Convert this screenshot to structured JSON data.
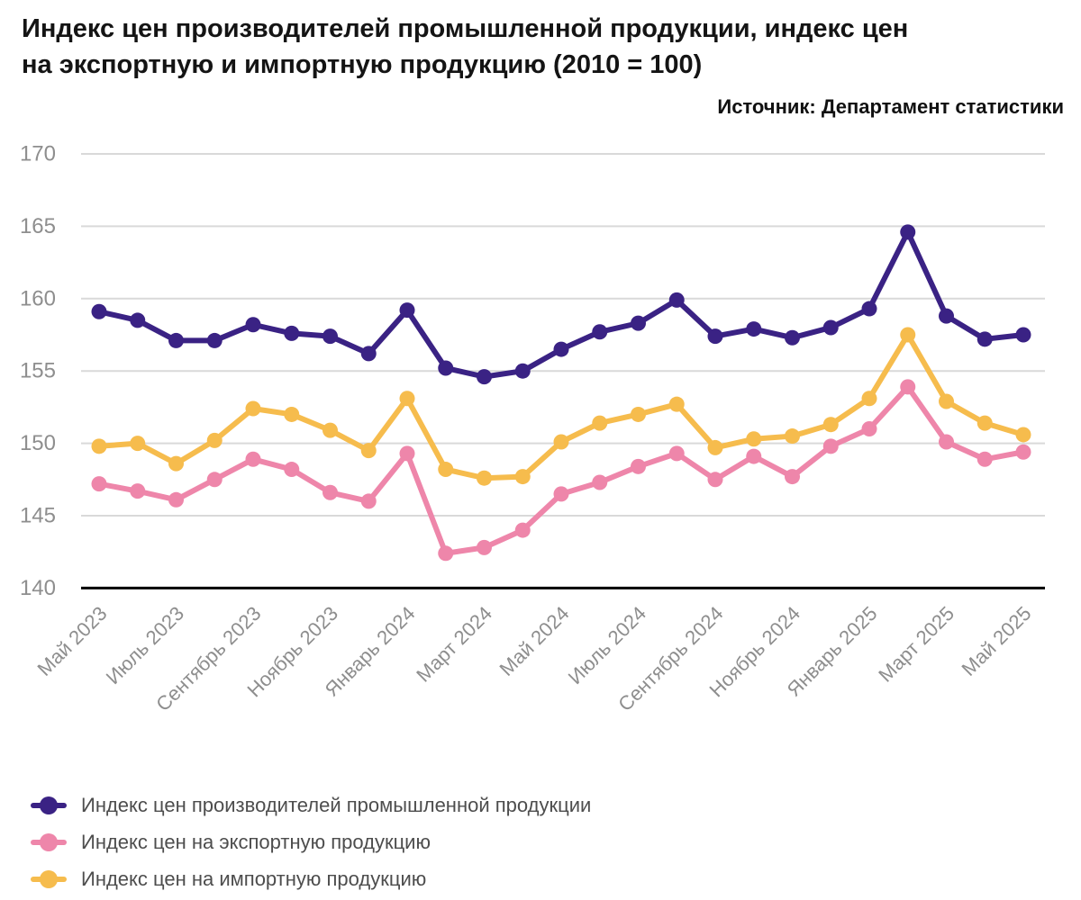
{
  "header": {
    "title_line1": "Индекс цен производителей промышленной продукции, индекс цен",
    "title_line2": "на экспортную и импортную продукцию (2010 = 100)",
    "source": "Источник: Департамент статистики"
  },
  "chart_data": {
    "type": "line",
    "title": "Индекс цен производителей промышленной продукции, индекс цен на экспортную и импортную продукцию (2010 = 100)",
    "xlabel": "",
    "ylabel": "",
    "ylim": [
      140,
      170
    ],
    "yticks": [
      140,
      145,
      150,
      155,
      160,
      165,
      170
    ],
    "grid": true,
    "legend_position": "bottom",
    "x_tick_labels": [
      "Май 2023",
      "Июль 2023",
      "Сентябрь 2023",
      "Ноябрь 2023",
      "Январь 2024",
      "Март 2024",
      "Май 2024",
      "Июль 2024",
      "Сентябрь 2024",
      "Ноябрь 2024",
      "Январь 2025",
      "Март 2025",
      "Май 2025"
    ],
    "categories": [
      "Май 2023",
      "Июнь 2023",
      "Июль 2023",
      "Август 2023",
      "Сентябрь 2023",
      "Октябрь 2023",
      "Ноябрь 2023",
      "Декабрь 2023",
      "Январь 2024",
      "Февраль 2024",
      "Март 2024",
      "Апрель 2024",
      "Май 2024",
      "Июнь 2024",
      "Июль 2024",
      "Август 2024",
      "Сентябрь 2024",
      "Октябрь 2024",
      "Ноябрь 2024",
      "Декабрь 2024",
      "Январь 2025",
      "Февраль 2025",
      "Март 2025",
      "Апрель 2025",
      "Май 2025"
    ],
    "series": [
      {
        "name": "Индекс цен производителей промышленной продукции",
        "color": "#3a2284",
        "values": [
          159.1,
          158.5,
          157.1,
          157.1,
          158.2,
          157.6,
          157.4,
          156.2,
          159.2,
          155.2,
          154.6,
          155.0,
          156.5,
          157.7,
          158.3,
          159.9,
          157.4,
          157.9,
          157.3,
          158.0,
          159.3,
          164.6,
          158.8,
          157.2,
          157.5
        ]
      },
      {
        "name": "Индекс цен на экспортную продукцию",
        "color": "#ee86aa",
        "values": [
          147.2,
          146.7,
          146.1,
          147.5,
          148.9,
          148.2,
          146.6,
          146.0,
          149.3,
          142.4,
          142.8,
          144.0,
          146.5,
          147.3,
          148.4,
          149.3,
          147.5,
          149.1,
          147.7,
          149.8,
          151.0,
          153.9,
          150.1,
          148.9,
          149.4
        ]
      },
      {
        "name": "Индекс цен на импортную продукцию",
        "color": "#f6bc4d",
        "values": [
          149.8,
          150.0,
          148.6,
          150.2,
          152.4,
          152.0,
          150.9,
          149.5,
          153.1,
          148.2,
          147.6,
          147.7,
          150.1,
          151.4,
          152.0,
          152.7,
          149.7,
          150.3,
          150.5,
          151.3,
          153.1,
          157.5,
          152.9,
          151.4,
          150.6
        ]
      }
    ],
    "colors": {
      "grid": "#d9d9d9",
      "axis": "#000000",
      "tick_labels": "#8e8e8e",
      "legend_text": "#4d4d4d"
    }
  }
}
